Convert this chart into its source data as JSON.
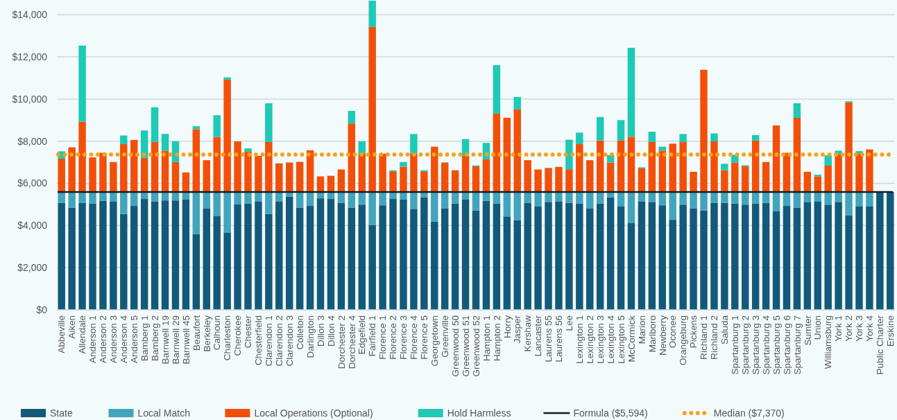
{
  "chart_data": {
    "type": "bar",
    "stacked": true,
    "legend": "bottom",
    "grid": "y",
    "categories": [
      "Abbeville",
      "Aiken",
      "Allendale",
      "Anderson 1",
      "Anderson 2",
      "Anderson 3",
      "Anderson 4",
      "Anderson 5",
      "Bamberg 1",
      "Bamberg 2",
      "Barnwell 19",
      "Barnwell 29",
      "Barnwell 45",
      "Beaufort",
      "Berkeley",
      "Calhoun",
      "Charleston",
      "Cherokee",
      "Chester",
      "Chesterfield",
      "Clarendon 1",
      "Clarendon 2",
      "Clarendon 3",
      "Colleton",
      "Darlington",
      "Dillon 3",
      "Dillon 4",
      "Dorchester 2",
      "Dorchester 4",
      "Edgefield",
      "Fairfield 1",
      "Florence 1",
      "Florence 2",
      "Florence 3",
      "Florence 4",
      "Florence 5",
      "Georgetown",
      "Greenville",
      "Greenwood 50",
      "Greenwood 51",
      "Greenwood 52",
      "Hampton 1",
      "Hampton 2",
      "Horry",
      "Jasper",
      "Kershaw",
      "Lancaster",
      "Laurens 55",
      "Laurens 56",
      "Lee",
      "Lexington 1",
      "Lexington 2",
      "Lexington 3",
      "Lexington 4",
      "Lexington 5",
      "McCormick",
      "Marion",
      "Marlboro",
      "Newberry",
      "Oconee",
      "Orangeburg",
      "Pickens",
      "Richland 1",
      "Richland 2",
      "Saluda",
      "Spartanburg 1",
      "Spartanburg 2",
      "Spartanburg 3",
      "Spartanburg 4",
      "Spartanburg 5",
      "Spartanburg 6",
      "Spartanburg 7",
      "Sumter",
      "Union",
      "Williamsburg",
      "York 1",
      "York 2",
      "York 3",
      "York 4",
      "Public Charter",
      "Erskine"
    ],
    "series": [
      {
        "name": "State",
        "color": "#135a7a",
        "values": [
          5070,
          4850,
          5070,
          5040,
          5170,
          5150,
          4550,
          4930,
          5260,
          5150,
          5190,
          5190,
          5230,
          3600,
          4820,
          4460,
          3670,
          5000,
          5040,
          5150,
          4550,
          5150,
          5370,
          4850,
          4930,
          5290,
          5260,
          5070,
          4850,
          4990,
          4030,
          4960,
          5260,
          5230,
          4790,
          5340,
          4190,
          4820,
          5040,
          5230,
          4710,
          5170,
          5040,
          4430,
          4250,
          5070,
          4900,
          5120,
          5150,
          5070,
          5040,
          4820,
          5040,
          5340,
          4900,
          4110,
          5150,
          5120,
          4960,
          4270,
          4990,
          4820,
          4710,
          5070,
          5070,
          5040,
          4990,
          5040,
          5070,
          4690,
          4930,
          4850,
          5120,
          5150,
          4990,
          5120,
          4490,
          4900,
          4900,
          5590,
          5590
        ]
      },
      {
        "name": "Local Match",
        "color": "#42a5bd",
        "values": [
          520,
          740,
          520,
          550,
          420,
          440,
          1040,
          660,
          330,
          440,
          400,
          400,
          360,
          1990,
          770,
          1130,
          1920,
          590,
          550,
          440,
          1040,
          440,
          220,
          740,
          660,
          300,
          330,
          520,
          740,
          600,
          1560,
          630,
          330,
          360,
          800,
          250,
          1400,
          770,
          550,
          360,
          880,
          420,
          550,
          1160,
          1340,
          520,
          690,
          470,
          440,
          520,
          550,
          770,
          550,
          250,
          690,
          1480,
          440,
          470,
          630,
          1320,
          600,
          770,
          880,
          520,
          520,
          550,
          600,
          550,
          520,
          900,
          660,
          740,
          470,
          440,
          600,
          470,
          1100,
          690,
          690,
          null,
          null
        ]
      },
      {
        "name": "Local Operations (Optional)",
        "color": "#f2500a",
        "values": [
          1580,
          2120,
          3340,
          1640,
          1860,
          1420,
          2270,
          2470,
          1620,
          2380,
          1960,
          1420,
          930,
          2980,
          1510,
          2610,
          5330,
          2400,
          1930,
          1710,
          2370,
          1360,
          1400,
          1430,
          1980,
          740,
          770,
          1070,
          3250,
          1820,
          7830,
          1820,
          980,
          1200,
          1820,
          980,
          2150,
          1400,
          1030,
          1720,
          1220,
          1550,
          3720,
          3520,
          3920,
          1510,
          1070,
          1140,
          1190,
          1080,
          2270,
          1510,
          2450,
          1400,
          2450,
          2620,
          1120,
          2370,
          1960,
          2290,
          2370,
          960,
          5800,
          2400,
          1030,
          1400,
          1220,
          2440,
          1420,
          3160,
          1860,
          3520,
          960,
          740,
          1250,
          1780,
          4260,
          1820,
          2020,
          null,
          null
        ]
      },
      {
        "name": "Hold Harmless",
        "color": "#1ec9b5",
        "values": [
          350,
          null,
          3610,
          null,
          null,
          null,
          410,
          null,
          1300,
          1640,
          800,
          990,
          null,
          140,
          null,
          1030,
          110,
          null,
          140,
          null,
          1840,
          null,
          null,
          null,
          null,
          null,
          null,
          null,
          600,
          580,
          1250,
          null,
          50,
          220,
          930,
          50,
          null,
          null,
          null,
          790,
          40,
          780,
          2300,
          null,
          590,
          null,
          null,
          null,
          null,
          1400,
          550,
          null,
          1110,
          350,
          960,
          4220,
          50,
          490,
          190,
          null,
          380,
          null,
          null,
          380,
          310,
          370,
          50,
          260,
          null,
          null,
          null,
          690,
          null,
          80,
          490,
          180,
          50,
          120,
          null,
          null,
          null
        ]
      }
    ],
    "ylim": [
      0,
      14700
    ],
    "yticks": [
      {
        "value": 0,
        "label": "$0"
      },
      {
        "value": 2000,
        "label": "$2,000"
      },
      {
        "value": 4000,
        "label": "$4,000"
      },
      {
        "value": 6000,
        "label": "$6,000"
      },
      {
        "value": 8000,
        "label": "$8,000"
      },
      {
        "value": 10000,
        "label": "$10,000"
      },
      {
        "value": 12000,
        "label": "$12,000"
      },
      {
        "value": 14000,
        "label": "$14,000"
      }
    ],
    "ref_lines": [
      {
        "axis": "y",
        "value": 5594,
        "label": "Formula ($5,594)",
        "color": "#1a1a1a",
        "line_style": "solid"
      },
      {
        "axis": "y",
        "value": 7370,
        "label": "Median ($7,370)",
        "color": "#f5a31b",
        "line_style": "dotted"
      }
    ]
  }
}
